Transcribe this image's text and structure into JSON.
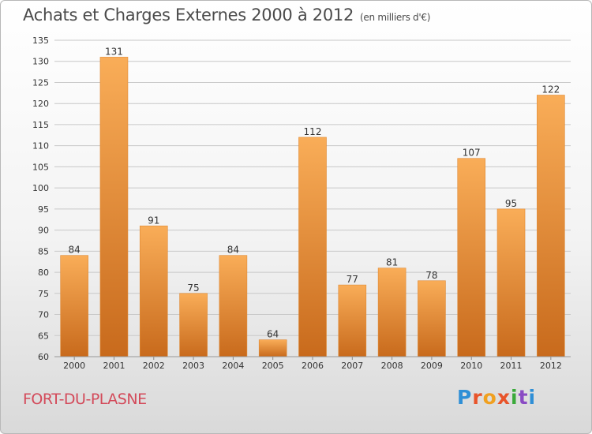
{
  "header": {
    "title": "Achats et Charges Externes 2000 à 2012",
    "subtitle": "(en milliers d'€)"
  },
  "footer": {
    "place": "FORT-DU-PLASNE",
    "logo": "Proxiti"
  },
  "colors": {
    "bar_light": "#f7a54e",
    "bar_dark": "#c86a1c",
    "grid": "#c8c8c8",
    "axis_text": "#333333"
  },
  "chart_data": {
    "type": "bar",
    "title": "Achats et Charges Externes 2000 à 2012",
    "subtitle": "(en milliers d'€)",
    "categories": [
      "2000",
      "2001",
      "2002",
      "2003",
      "2004",
      "2005",
      "2006",
      "2007",
      "2008",
      "2009",
      "2010",
      "2011",
      "2012"
    ],
    "values": [
      84,
      131,
      91,
      75,
      84,
      64,
      112,
      77,
      81,
      78,
      107,
      95,
      122
    ],
    "ylim": [
      60,
      135
    ],
    "yticks": [
      60,
      65,
      70,
      75,
      80,
      85,
      90,
      95,
      100,
      105,
      110,
      115,
      120,
      125,
      130,
      135
    ],
    "grid": true
  }
}
